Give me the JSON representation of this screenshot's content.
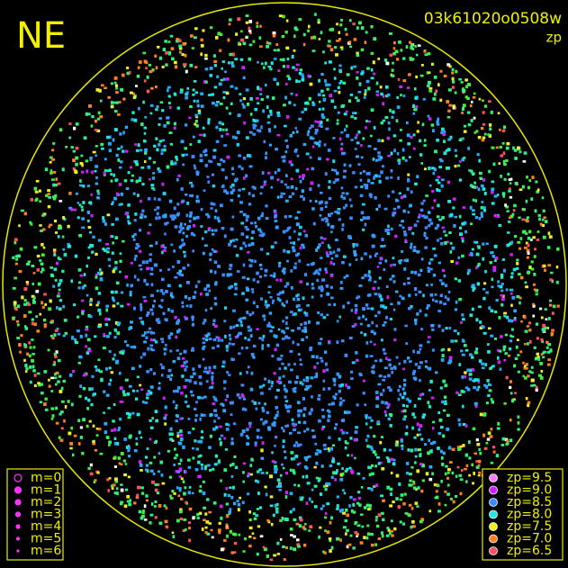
{
  "header": {
    "direction": "NE",
    "image_id": "03k61020o0508w",
    "mode": "zp"
  },
  "magnitude_legend": {
    "items": [
      "m=0",
      "m=1",
      "m=2",
      "m=3",
      "m=4",
      "m=5",
      "m=6"
    ],
    "color": "#ff30ff"
  },
  "zp_legend": {
    "items": [
      {
        "label": "zp=9.5",
        "color": "#ff7cff"
      },
      {
        "label": "zp=9.0",
        "color": "#d020ff"
      },
      {
        "label": "zp=8.5",
        "color": "#3c8cff"
      },
      {
        "label": "zp=8.0",
        "color": "#20e8e0"
      },
      {
        "label": "zp=7.5",
        "color": "#f0f020"
      },
      {
        "label": "zp=7.0",
        "color": "#ff8020"
      },
      {
        "label": "zp=6.5",
        "color": "#ff5060"
      }
    ]
  }
}
